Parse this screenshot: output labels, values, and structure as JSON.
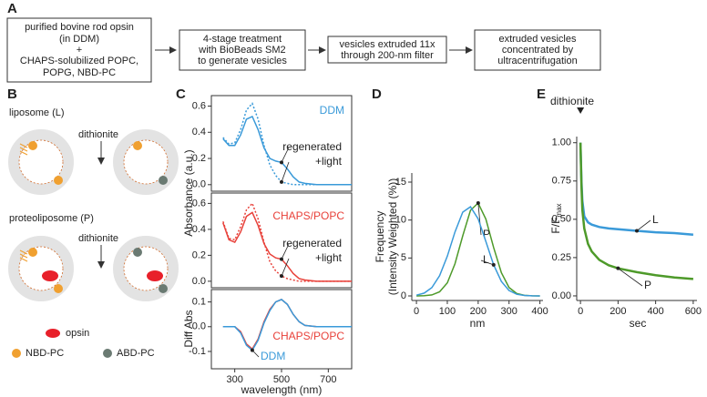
{
  "panel_labels": [
    "A",
    "B",
    "C",
    "D",
    "E"
  ],
  "flowchart": {
    "steps": [
      {
        "lines": [
          "purified bovine rod opsin",
          "(in DDM)",
          "+",
          "CHAPS-solubilized POPC,",
          "POPG, NBD-PC"
        ]
      },
      {
        "lines": [
          "4-stage treatment",
          "with BioBeads SM2",
          "to generate vesicles"
        ]
      },
      {
        "lines": [
          "vesicles extruded 11x",
          "through 200-nm filter"
        ]
      },
      {
        "lines": [
          "extruded vesicles",
          "concentrated by",
          "ultracentrifugation"
        ]
      }
    ]
  },
  "diagram": {
    "liposome": "liposome (L)",
    "proteoliposome": "proteoliposome (P)",
    "reagents": [
      "dithionite",
      "dithionite"
    ],
    "legend": [
      "opsin",
      "NBD-PC",
      "ABD-PC"
    ]
  },
  "chart_data": [
    {
      "type": "line",
      "annotation": "DDM",
      "ylabel": "Absorbance (a.u.)",
      "xlim": [
        200,
        800
      ],
      "ylim": [
        -0.05,
        0.68
      ],
      "yticks": [
        {
          "value": 0,
          "label": "0.0"
        },
        0.2,
        0.4,
        0.6
      ],
      "x": [
        250,
        275,
        300,
        325,
        350,
        375,
        400,
        425,
        450,
        475,
        500,
        525,
        550,
        575,
        600,
        650,
        700,
        750,
        800
      ],
      "series": [
        {
          "name": "regenerated",
          "color": "#3a9ad9",
          "style": "solid",
          "values": [
            0.35,
            0.3,
            0.3,
            0.38,
            0.5,
            0.52,
            0.42,
            0.28,
            0.2,
            0.18,
            0.17,
            0.12,
            0.06,
            0.02,
            0.01,
            0,
            0,
            0,
            0
          ]
        },
        {
          "name": "+light",
          "color": "#3a9ad9",
          "style": "dotted",
          "values": [
            0.36,
            0.31,
            0.32,
            0.42,
            0.57,
            0.62,
            0.5,
            0.3,
            0.15,
            0.07,
            0.02,
            0.01,
            0,
            0,
            0,
            0,
            0,
            0,
            0
          ]
        }
      ]
    },
    {
      "type": "line",
      "annotation": "CHAPS/POPC",
      "xlim": [
        200,
        800
      ],
      "ylim": [
        -0.05,
        0.68
      ],
      "yticks": [
        {
          "value": 0,
          "label": "0.0"
        },
        0.2,
        0.4,
        0.6
      ],
      "x": [
        250,
        275,
        300,
        325,
        350,
        375,
        400,
        425,
        450,
        475,
        500,
        525,
        550,
        575,
        600,
        650,
        700,
        750,
        800
      ],
      "series": [
        {
          "name": "regenerated",
          "color": "#e8413a",
          "style": "solid",
          "values": [
            0.45,
            0.32,
            0.3,
            0.38,
            0.5,
            0.53,
            0.43,
            0.29,
            0.21,
            0.18,
            0.17,
            0.12,
            0.06,
            0.02,
            0.01,
            0,
            0,
            0,
            0
          ]
        },
        {
          "name": "+light",
          "color": "#e8413a",
          "style": "dotted",
          "values": [
            0.46,
            0.33,
            0.32,
            0.42,
            0.55,
            0.6,
            0.48,
            0.3,
            0.15,
            0.08,
            0.04,
            0.02,
            0.01,
            0,
            0,
            0,
            0,
            0,
            0
          ]
        }
      ]
    },
    {
      "type": "line",
      "ylabel": "Diff Abs",
      "xlabel": "wavelength (nm)",
      "xlim": [
        200,
        800
      ],
      "ylim": [
        -0.17,
        0.15
      ],
      "xticks": [
        300,
        500,
        700
      ],
      "yticks": [
        -0.1,
        {
          "value": 0,
          "label": "0.0"
        },
        0.1
      ],
      "x": [
        250,
        275,
        300,
        325,
        350,
        375,
        400,
        425,
        450,
        475,
        500,
        525,
        550,
        575,
        600,
        650,
        700,
        750,
        800
      ],
      "series": [
        {
          "name": "CHAPS/POPC",
          "color": "#e8413a",
          "style": "solid",
          "values": [
            0,
            0,
            0,
            -0.02,
            -0.07,
            -0.09,
            -0.05,
            0.02,
            0.07,
            0.1,
            0.11,
            0.09,
            0.05,
            0.02,
            0.005,
            0,
            0,
            0,
            0
          ]
        },
        {
          "name": "DDM",
          "color": "#3a9ad9",
          "style": "solid",
          "values": [
            0,
            0,
            0,
            -0.025,
            -0.075,
            -0.095,
            -0.055,
            0.015,
            0.065,
            0.1,
            0.11,
            0.09,
            0.05,
            0.02,
            0.005,
            0,
            0,
            0,
            0
          ]
        }
      ]
    },
    {
      "type": "line",
      "ylabel": [
        "Frequency",
        "(Intensity Weighted (%))"
      ],
      "xlabel": "nm",
      "xlim": [
        -15,
        410
      ],
      "ylim": [
        -0.6,
        16.2
      ],
      "xticks": [
        0,
        100,
        200,
        300,
        400
      ],
      "yticks": [
        0,
        5,
        10,
        15
      ],
      "x": [
        0,
        25,
        50,
        75,
        100,
        125,
        150,
        175,
        200,
        225,
        250,
        275,
        300,
        325,
        350,
        375,
        400
      ],
      "series": [
        {
          "name": "P",
          "color": "#4e9a2a",
          "style": "solid",
          "values": [
            0,
            0.02,
            0.13,
            0.54,
            1.73,
            4.25,
            7.92,
            11.28,
            12.24,
            10.12,
            6.38,
            3.06,
            1.12,
            0.31,
            0.07,
            0.01,
            0
          ]
        },
        {
          "name": "L",
          "color": "#3a9ad9",
          "style": "solid",
          "values": [
            0.1,
            0.37,
            1.09,
            2.66,
            5.25,
            8.44,
            11.04,
            11.75,
            10.17,
            7.16,
            4.1,
            1.91,
            0.72,
            0.22,
            0.06,
            0.01,
            0
          ]
        }
      ]
    },
    {
      "type": "line",
      "ylabel": "F/F",
      "ylabel_sub": "max",
      "xlabel": "sec",
      "annotation": "dithionite",
      "xlim": [
        -20,
        620
      ],
      "ylim": [
        -0.03,
        1.04
      ],
      "xticks": [
        0,
        200,
        400,
        600
      ],
      "yticks": [
        {
          "value": 0,
          "label": "0.00"
        },
        0.25,
        {
          "value": 0.5,
          "label": "0.50"
        },
        0.75,
        {
          "value": 1,
          "label": "1.00"
        }
      ],
      "x": [
        0,
        5,
        10,
        20,
        40,
        60,
        100,
        150,
        200,
        300,
        400,
        500,
        600
      ],
      "series": [
        {
          "name": "L",
          "color": "#3a9ad9",
          "style": "solid",
          "values": [
            1.0,
            0.75,
            0.62,
            0.52,
            0.48,
            0.465,
            0.45,
            0.44,
            0.435,
            0.425,
            0.415,
            0.41,
            0.4
          ]
        },
        {
          "name": "P",
          "color": "#4e9a2a",
          "style": "solid",
          "values": [
            1.0,
            0.72,
            0.56,
            0.44,
            0.34,
            0.29,
            0.235,
            0.2,
            0.18,
            0.155,
            0.135,
            0.12,
            0.11
          ]
        }
      ]
    }
  ]
}
